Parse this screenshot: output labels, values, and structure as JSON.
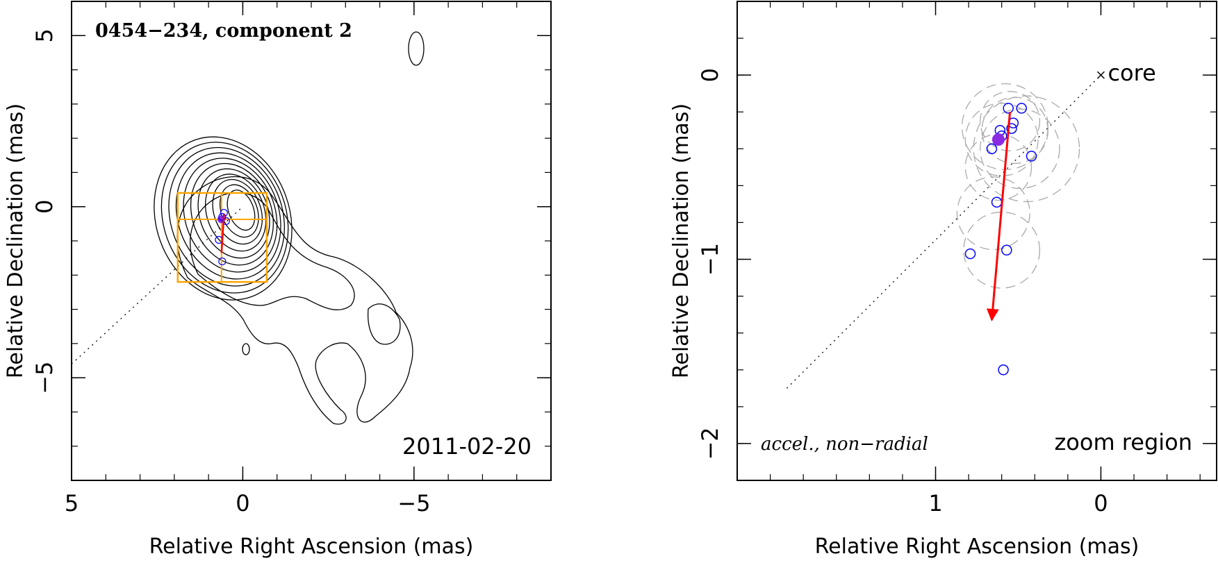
{
  "chart_data": [
    {
      "type": "contour",
      "title": "0454−234, component 2",
      "date": "2011-02-20",
      "xlabel": "Relative Right Ascension (mas)",
      "ylabel": "Relative Declination (mas)",
      "xlim": [
        5,
        -9
      ],
      "ylim": [
        -8,
        6
      ],
      "xticks": [
        {
          "v": 5,
          "l": "5"
        },
        {
          "v": 0,
          "l": "0"
        },
        {
          "v": -5,
          "l": "−5"
        }
      ],
      "yticks": [
        {
          "v": 5,
          "l": "5"
        },
        {
          "v": 0,
          "l": "0"
        },
        {
          "v": -5,
          "l": "−5"
        }
      ],
      "colors": {
        "contour": "#000000",
        "box": "#FFA500",
        "points": "#0000FF",
        "vector": "#FF0000",
        "filled_point": "#8A2BE2"
      },
      "zoom_box": {
        "x": [
          1.9,
          -0.7
        ],
        "y": [
          -2.2,
          0.4
        ]
      },
      "component_positions": [
        {
          "x": 0.63,
          "y": -0.37,
          "filled": true
        },
        {
          "x": 0.55,
          "y": -0.18
        },
        {
          "x": 0.6,
          "y": -0.3
        },
        {
          "x": 0.49,
          "y": -0.42
        },
        {
          "x": 0.7,
          "y": -0.97
        },
        {
          "x": 0.6,
          "y": -1.6
        }
      ],
      "velocity_vector": {
        "x0": 0.62,
        "y0": -1.35,
        "x1": 0.55,
        "y1": -0.22
      },
      "core_direction_line": {
        "x0": 5.0,
        "y0": -4.6,
        "x1": 0.0,
        "y1": 0.0
      }
    },
    {
      "type": "scatter",
      "label": "accel., non−radial",
      "annotation": "zoom region",
      "core_label": "core",
      "xlabel": "Relative Right Ascension (mas)",
      "ylabel": "Relative Declination (mas)",
      "xlim": [
        2.2,
        -0.7
      ],
      "ylim": [
        -2.2,
        0.4
      ],
      "xticks": [
        {
          "v": 1,
          "l": "1"
        },
        {
          "v": 0,
          "l": "0"
        }
      ],
      "yticks": [
        {
          "v": 0,
          "l": "0"
        },
        {
          "v": -1,
          "l": "−1"
        },
        {
          "v": -2,
          "l": "−2"
        }
      ],
      "core": {
        "x": 0,
        "y": 0
      },
      "points": [
        {
          "x": 0.56,
          "y": -0.18
        },
        {
          "x": 0.48,
          "y": -0.18
        },
        {
          "x": 0.61,
          "y": -0.3
        },
        {
          "x": 0.6,
          "y": -0.33
        },
        {
          "x": 0.54,
          "y": -0.29
        },
        {
          "x": 0.53,
          "y": -0.26
        },
        {
          "x": 0.66,
          "y": -0.4
        },
        {
          "x": 0.42,
          "y": -0.44
        },
        {
          "x": 0.63,
          "y": -0.69
        },
        {
          "x": 0.79,
          "y": -0.97
        },
        {
          "x": 0.57,
          "y": -0.95
        },
        {
          "x": 0.59,
          "y": -1.6
        }
      ],
      "filled_point": {
        "x": 0.62,
        "y": -0.35
      },
      "error_circles": [
        {
          "x": 0.55,
          "y": -0.25,
          "r": 0.18
        },
        {
          "x": 0.52,
          "y": -0.3,
          "r": 0.2
        },
        {
          "x": 0.6,
          "y": -0.35,
          "r": 0.22
        },
        {
          "x": 0.49,
          "y": -0.4,
          "r": 0.24
        },
        {
          "x": 0.58,
          "y": -0.28,
          "r": 0.26
        },
        {
          "x": 0.62,
          "y": -0.5,
          "r": 0.2
        },
        {
          "x": 0.45,
          "y": -0.4,
          "r": 0.32
        },
        {
          "x": 0.65,
          "y": -0.75,
          "r": 0.22
        },
        {
          "x": 0.6,
          "y": -0.95,
          "r": 0.23
        }
      ],
      "velocity_vector": {
        "x0": 0.66,
        "y0": -1.33,
        "x1": 0.55,
        "y1": -0.2
      },
      "core_direction_line": {
        "x0": 1.9,
        "y0": -1.7,
        "x1": 0.0,
        "y1": 0.0
      }
    }
  ]
}
